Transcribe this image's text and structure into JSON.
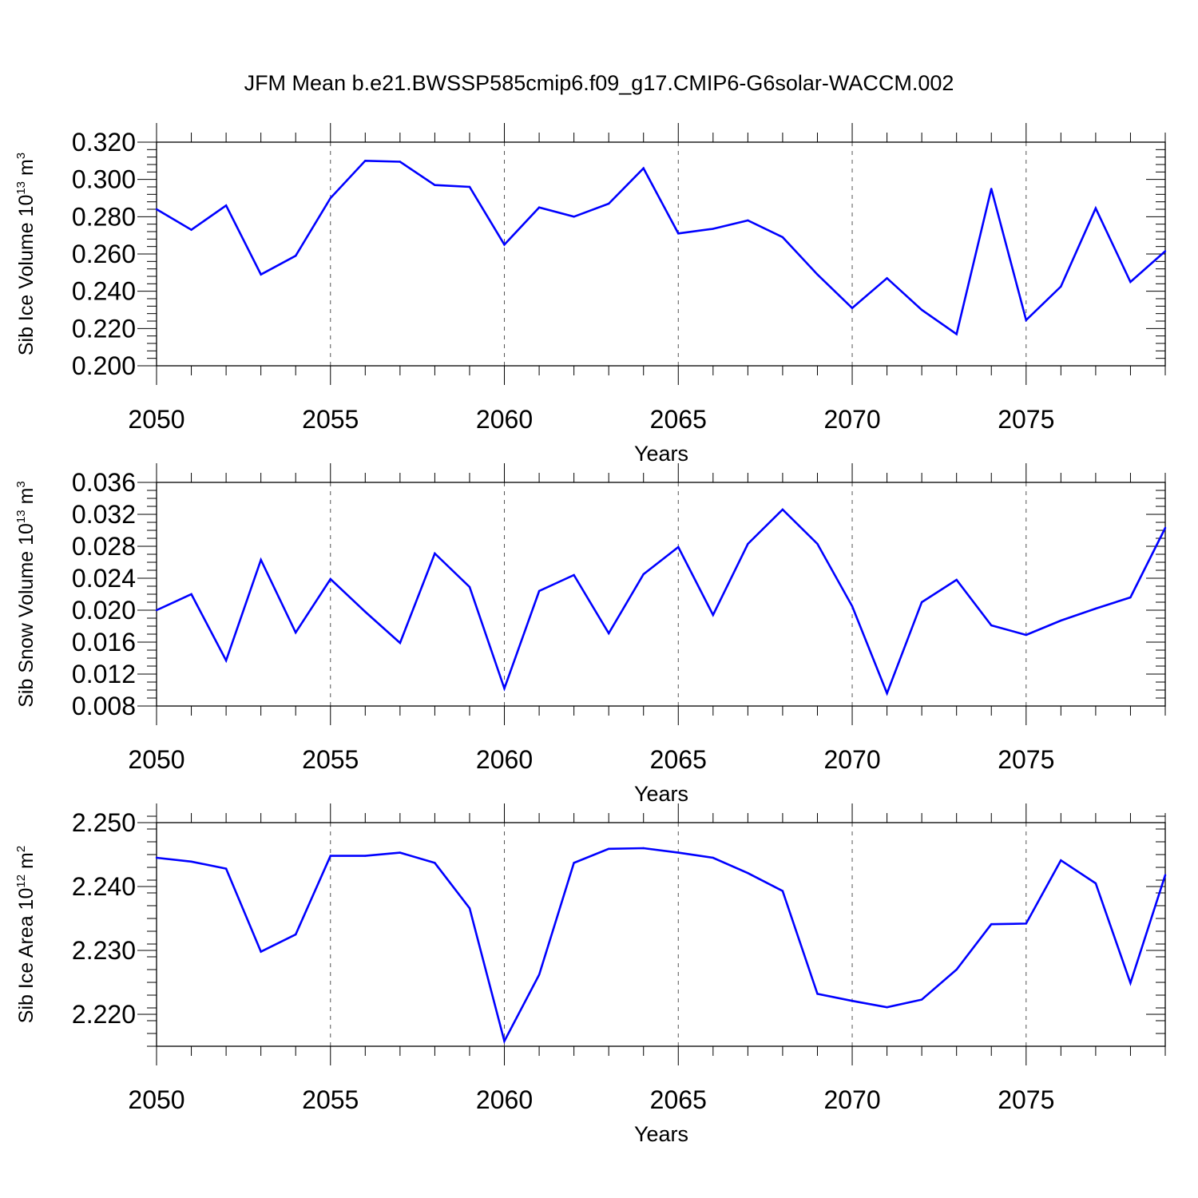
{
  "title": "JFM Mean b.e21.BWSSP585cmip6.f09_g17.CMIP6-G6solar-WACCM.002",
  "colors": {
    "series": "#0000ff",
    "axis": "#000000",
    "grid": "#555555"
  },
  "chart_data": [
    {
      "type": "line",
      "ylabel": {
        "text": "Sib Ice Volume 10",
        "exp": "13",
        "unit": " m",
        "unit_exp": "3"
      },
      "xlabel": "Years",
      "xlim": [
        2050,
        2079
      ],
      "ylim": [
        0.2,
        0.32
      ],
      "xticks": [
        2050,
        2055,
        2060,
        2065,
        2070,
        2075
      ],
      "xtick_labels": [
        "2050",
        "2055",
        "2060",
        "2065",
        "2070",
        "2075"
      ],
      "yticks": [
        0.2,
        0.22,
        0.24,
        0.26,
        0.28,
        0.3,
        0.32
      ],
      "ytick_labels": [
        "0.200",
        "0.220",
        "0.240",
        "0.260",
        "0.280",
        "0.300",
        "0.320"
      ],
      "grid": "vertical dashed at labeled years",
      "x": [
        2050,
        2051,
        2052,
        2053,
        2054,
        2055,
        2056,
        2057,
        2058,
        2059,
        2060,
        2061,
        2062,
        2063,
        2064,
        2065,
        2066,
        2067,
        2068,
        2069,
        2070,
        2071,
        2072,
        2073,
        2074,
        2075,
        2076,
        2077,
        2078,
        2079
      ],
      "y": [
        0.284,
        0.273,
        0.286,
        0.249,
        0.259,
        0.29,
        0.31,
        0.3095,
        0.297,
        0.296,
        0.265,
        0.285,
        0.28,
        0.287,
        0.306,
        0.271,
        0.2735,
        0.278,
        0.269,
        0.249,
        0.231,
        0.247,
        0.23,
        0.217,
        0.295,
        0.2245,
        0.2425,
        0.2845,
        0.245,
        0.2615
      ]
    },
    {
      "type": "line",
      "ylabel": {
        "text": "Sib Snow Volume 10",
        "exp": "13",
        "unit": " m",
        "unit_exp": "3"
      },
      "xlabel": "Years",
      "xlim": [
        2050,
        2079
      ],
      "ylim": [
        0.008,
        0.036
      ],
      "xticks": [
        2050,
        2055,
        2060,
        2065,
        2070,
        2075
      ],
      "xtick_labels": [
        "2050",
        "2055",
        "2060",
        "2065",
        "2070",
        "2075"
      ],
      "yticks": [
        0.008,
        0.012,
        0.016,
        0.02,
        0.024,
        0.028,
        0.032,
        0.036
      ],
      "ytick_labels": [
        "0.008",
        "0.012",
        "0.016",
        "0.020",
        "0.024",
        "0.028",
        "0.032",
        "0.036"
      ],
      "grid": "vertical dashed at labeled years",
      "x": [
        2050,
        2051,
        2052,
        2053,
        2054,
        2055,
        2056,
        2057,
        2058,
        2059,
        2060,
        2061,
        2062,
        2063,
        2064,
        2065,
        2066,
        2067,
        2068,
        2069,
        2070,
        2071,
        2072,
        2073,
        2074,
        2075,
        2076,
        2077,
        2078,
        2079
      ],
      "y": [
        0.02,
        0.022,
        0.0137,
        0.0263,
        0.0172,
        0.0239,
        0.0198,
        0.0159,
        0.0271,
        0.0229,
        0.0102,
        0.0224,
        0.0244,
        0.0171,
        0.0245,
        0.0279,
        0.0194,
        0.0283,
        0.0326,
        0.0283,
        0.0205,
        0.0096,
        0.021,
        0.0238,
        0.0181,
        0.0169,
        0.0187,
        0.0202,
        0.0216,
        0.0303
      ]
    },
    {
      "type": "line",
      "ylabel": {
        "text": "Sib Ice Area 10",
        "exp": "12",
        "unit": " m",
        "unit_exp": "2"
      },
      "xlabel": "Years",
      "xlim": [
        2050,
        2079
      ],
      "ylim": [
        2.215,
        2.25
      ],
      "xticks": [
        2050,
        2055,
        2060,
        2065,
        2070,
        2075
      ],
      "xtick_labels": [
        "2050",
        "2055",
        "2060",
        "2065",
        "2070",
        "2075"
      ],
      "yticks": [
        2.22,
        2.23,
        2.24,
        2.25
      ],
      "ytick_labels": [
        "2.220",
        "2.230",
        "2.240",
        "2.250"
      ],
      "grid": "vertical dashed at labeled years",
      "x": [
        2050,
        2051,
        2052,
        2053,
        2054,
        2055,
        2056,
        2057,
        2058,
        2059,
        2060,
        2061,
        2062,
        2063,
        2064,
        2065,
        2066,
        2067,
        2068,
        2069,
        2070,
        2071,
        2072,
        2073,
        2074,
        2075,
        2076,
        2077,
        2078,
        2079
      ],
      "y": [
        2.2445,
        2.2439,
        2.2428,
        2.2298,
        2.2325,
        2.2448,
        2.2448,
        2.2453,
        2.2437,
        2.2366,
        2.2158,
        2.2262,
        2.2437,
        2.2459,
        2.246,
        2.2453,
        2.2445,
        2.2421,
        2.2393,
        2.2232,
        2.2221,
        2.2211,
        2.2223,
        2.227,
        2.2341,
        2.2342,
        2.2441,
        2.2405,
        2.2249,
        2.2418
      ]
    }
  ]
}
